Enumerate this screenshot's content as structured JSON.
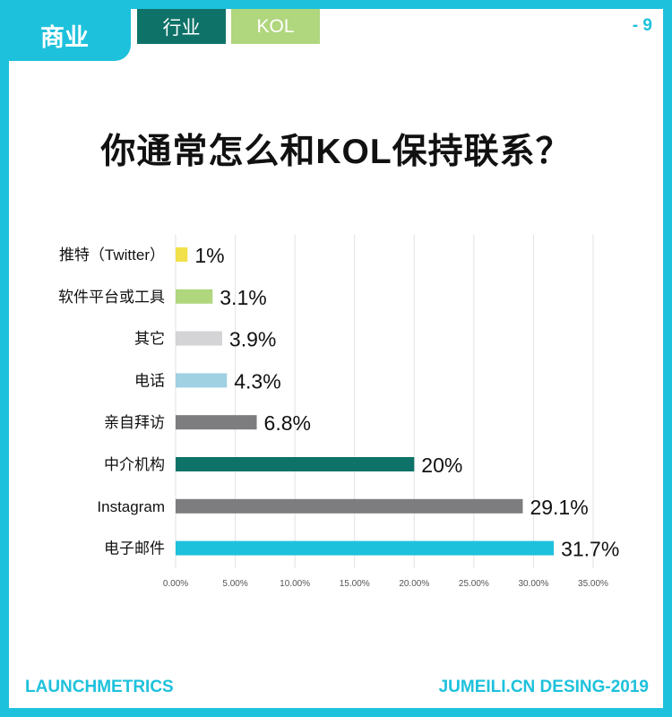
{
  "header": {
    "section_tab": "商业",
    "tabs": [
      "行业",
      "KOL"
    ],
    "page_number": "- 9"
  },
  "colors": {
    "accent": "#1ec1dc",
    "dark_teal": "#0e7268",
    "light_green": "#b0d67e"
  },
  "chart_data": {
    "type": "bar",
    "orientation": "horizontal",
    "title": "你通常怎么和KOL保持联系？",
    "categories": [
      "推特（Twitter）",
      "软件平台或工具",
      "其它",
      "电话",
      "亲自拜访",
      "中介机构",
      "Instagram",
      "电子邮件"
    ],
    "values": [
      1,
      3.1,
      3.9,
      4.3,
      6.8,
      20,
      29.1,
      31.7
    ],
    "value_labels": [
      "1%",
      "3.1%",
      "3.9%",
      "4.3%",
      "6.8%",
      "20%",
      "29.1%",
      "31.7%"
    ],
    "bar_colors": [
      "#f2e04a",
      "#b0d67e",
      "#d4d4d6",
      "#9fd1e2",
      "#7d7d7f",
      "#0e7268",
      "#7d7d7f",
      "#1ec1dc"
    ],
    "xlim": [
      0,
      35
    ],
    "xticks": [
      "0.00%",
      "5.00%",
      "10.00%",
      "15.00%",
      "20.00%",
      "25.00%",
      "30.00%",
      "35.00%"
    ],
    "grid": true
  },
  "footer": {
    "left": "LAUNCHMETRICS",
    "right": "JUMEILI.CN DESING-2019"
  }
}
